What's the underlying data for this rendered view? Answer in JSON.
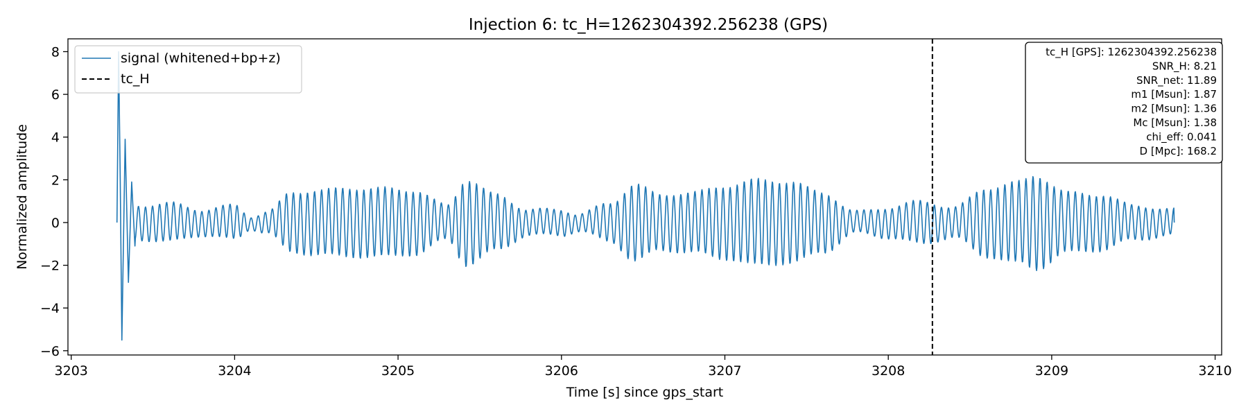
{
  "chart_data": {
    "type": "line",
    "title": "Injection 6: tc_H=1262304392.256238 (GPS)",
    "xlabel": "Time [s] since gps_start",
    "ylabel": "Normalized amplitude",
    "xlim": [
      3202.98,
      3210.04
    ],
    "ylim": [
      -6.2,
      8.6
    ],
    "xticks": [
      3203,
      3204,
      3205,
      3206,
      3207,
      3208,
      3209,
      3210
    ],
    "yticks": [
      -6,
      -4,
      -2,
      0,
      2,
      4,
      6,
      8
    ],
    "grid": false,
    "legend_placement": "upper-left",
    "series": [
      {
        "name": "signal (whitened+bp+z)",
        "color": "#1f77b4",
        "x_start": 3203.28,
        "x_end": 3209.75,
        "oscillation_hz": 23.2,
        "initial_transient": [
          {
            "x": 3203.28,
            "y": 0.0
          },
          {
            "x": 3203.29,
            "y": 8.0
          },
          {
            "x": 3203.3,
            "y": 2.0
          },
          {
            "x": 3203.31,
            "y": -5.5
          },
          {
            "x": 3203.33,
            "y": 3.9
          },
          {
            "x": 3203.35,
            "y": -2.8
          },
          {
            "x": 3203.37,
            "y": 1.9
          },
          {
            "x": 3203.39,
            "y": -1.1
          }
        ],
        "envelope_t": [
          3203.42,
          3203.6,
          3203.8,
          3204.0,
          3204.1,
          3204.2,
          3204.35,
          3204.5,
          3204.7,
          3204.9,
          3205.1,
          3205.3,
          3205.42,
          3205.6,
          3205.8,
          3206.0,
          3206.1,
          3206.3,
          3206.45,
          3206.6,
          3206.8,
          3207.0,
          3207.2,
          3207.4,
          3207.6,
          3207.8,
          3208.0,
          3208.2,
          3208.4,
          3208.6,
          3208.8,
          3208.9,
          3209.1,
          3209.3,
          3209.5,
          3209.75
        ],
        "envelope_a": [
          0.8,
          0.9,
          0.6,
          0.8,
          0.3,
          0.5,
          1.4,
          1.5,
          1.6,
          1.6,
          1.5,
          0.8,
          2.0,
          1.3,
          0.6,
          0.6,
          0.4,
          0.9,
          1.8,
          1.3,
          1.4,
          1.7,
          2.0,
          1.9,
          1.4,
          0.5,
          0.7,
          1.0,
          0.7,
          1.6,
          1.9,
          2.2,
          1.4,
          1.3,
          0.8,
          0.6
        ]
      },
      {
        "name": "tc_H",
        "color": "#000000",
        "style": "dashed",
        "x": 3208.27
      }
    ],
    "info_box": [
      "tc_H [GPS]: 1262304392.256238",
      "SNR_H: 8.21",
      "SNR_net: 11.89",
      "m1 [Msun]: 1.87",
      "m2 [Msun]: 1.36",
      "Mc [Msun]: 1.38",
      "chi_eff: 0.041",
      "D [Mpc]: 168.2"
    ]
  }
}
